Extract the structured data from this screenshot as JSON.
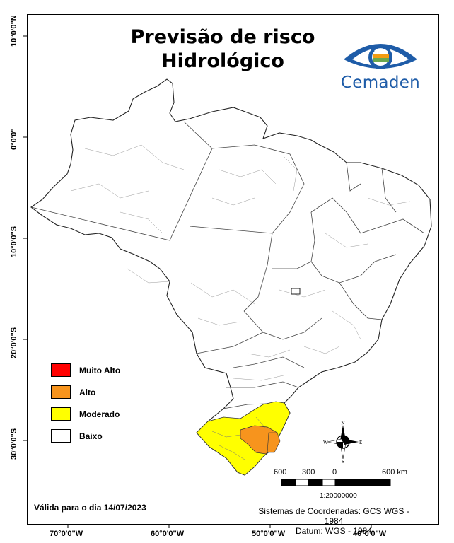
{
  "title": [
    "Previsão de risco",
    "Hidrológico"
  ],
  "logo": {
    "text": "Cemaden",
    "colors": {
      "blue": "#1e5ca8",
      "green": "#6aa84f",
      "orange": "#f39c12"
    }
  },
  "axes": {
    "y_ticks": [
      "10°0'0\"N",
      "0°0'0\"",
      "10°0'0\"S",
      "20°0'0\"S",
      "30°0'0\"S"
    ],
    "x_ticks": [
      "70°0'0\"W",
      "60°0'0\"W",
      "50°0'0\"W",
      "40°0'0\"W"
    ]
  },
  "legend": [
    {
      "label": "Muito Alto",
      "color": "#ff0000"
    },
    {
      "label": "Alto",
      "color": "#f7941d"
    },
    {
      "label": "Moderado",
      "color": "#ffff00"
    },
    {
      "label": "Baixo",
      "color": "#ffffff"
    }
  ],
  "valid_text": "Válida para o dia 14/07/2023",
  "coord_system": [
    "Sistemas de Coordenadas: GCS WGS - 1984",
    "Datum: WGS - 1984"
  ],
  "scale": {
    "labels": [
      "600",
      "300",
      "0",
      "600 km"
    ],
    "ratio": "1:20000000"
  },
  "compass": {
    "n": "N",
    "s": "S",
    "e": "E",
    "w": "W"
  }
}
